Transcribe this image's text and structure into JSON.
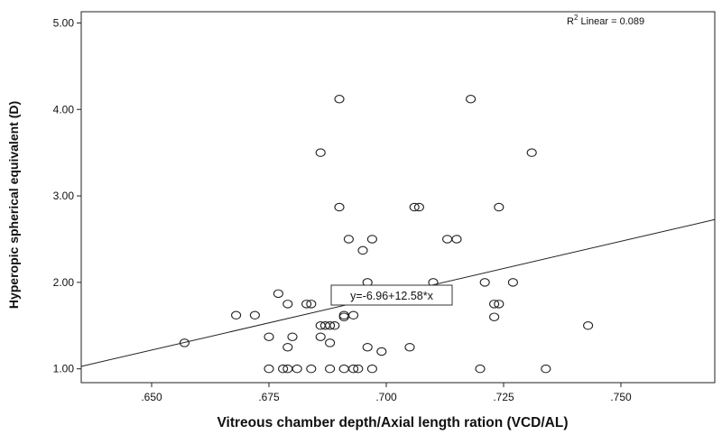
{
  "chart_data": {
    "type": "scatter",
    "xlabel": "Vitreous chamber depth/Axial length ration (VCD/AL)",
    "ylabel": "Hyperopic spherical equivalent (D)",
    "xlim": [
      0.635,
      0.77
    ],
    "ylim": [
      0.84,
      5.13
    ],
    "x_ticks": [
      0.65,
      0.675,
      0.7,
      0.725,
      0.75
    ],
    "x_tick_labels": [
      ".650",
      ".675",
      ".700",
      ".725",
      ".750"
    ],
    "y_ticks": [
      1.0,
      2.0,
      3.0,
      4.0,
      5.0
    ],
    "y_tick_labels": [
      "1.00",
      "2.00",
      "3.00",
      "4.00",
      "5.00"
    ],
    "grid": false,
    "fit_line": {
      "intercept": -6.96,
      "slope": 12.58,
      "label": "y=-6.96+12.58*x"
    },
    "r2_label": {
      "prefix": "R",
      "superscript": "2",
      "suffix": " Linear = 0.089"
    },
    "points": [
      {
        "x": 0.657,
        "y": 1.3
      },
      {
        "x": 0.668,
        "y": 1.62
      },
      {
        "x": 0.672,
        "y": 1.62
      },
      {
        "x": 0.675,
        "y": 1.37
      },
      {
        "x": 0.675,
        "y": 1.0
      },
      {
        "x": 0.677,
        "y": 1.87
      },
      {
        "x": 0.678,
        "y": 1.0
      },
      {
        "x": 0.679,
        "y": 1.0
      },
      {
        "x": 0.679,
        "y": 1.25
      },
      {
        "x": 0.679,
        "y": 1.75
      },
      {
        "x": 0.68,
        "y": 1.37
      },
      {
        "x": 0.681,
        "y": 1.0
      },
      {
        "x": 0.683,
        "y": 1.75
      },
      {
        "x": 0.684,
        "y": 1.75
      },
      {
        "x": 0.684,
        "y": 1.0
      },
      {
        "x": 0.686,
        "y": 1.37
      },
      {
        "x": 0.686,
        "y": 1.5
      },
      {
        "x": 0.686,
        "y": 3.5
      },
      {
        "x": 0.687,
        "y": 1.5
      },
      {
        "x": 0.688,
        "y": 1.5
      },
      {
        "x": 0.689,
        "y": 1.5
      },
      {
        "x": 0.688,
        "y": 1.3
      },
      {
        "x": 0.688,
        "y": 1.0
      },
      {
        "x": 0.69,
        "y": 2.87
      },
      {
        "x": 0.69,
        "y": 4.12
      },
      {
        "x": 0.691,
        "y": 1.62
      },
      {
        "x": 0.691,
        "y": 1.6
      },
      {
        "x": 0.691,
        "y": 1.0
      },
      {
        "x": 0.692,
        "y": 2.5
      },
      {
        "x": 0.693,
        "y": 1.62
      },
      {
        "x": 0.693,
        "y": 1.0
      },
      {
        "x": 0.694,
        "y": 1.0
      },
      {
        "x": 0.695,
        "y": 2.37
      },
      {
        "x": 0.696,
        "y": 2.0
      },
      {
        "x": 0.696,
        "y": 1.25
      },
      {
        "x": 0.697,
        "y": 2.5
      },
      {
        "x": 0.697,
        "y": 1.0
      },
      {
        "x": 0.699,
        "y": 1.2
      },
      {
        "x": 0.705,
        "y": 1.25
      },
      {
        "x": 0.706,
        "y": 2.87
      },
      {
        "x": 0.707,
        "y": 2.87
      },
      {
        "x": 0.71,
        "y": 2.0
      },
      {
        "x": 0.713,
        "y": 2.5
      },
      {
        "x": 0.715,
        "y": 2.5
      },
      {
        "x": 0.718,
        "y": 4.12
      },
      {
        "x": 0.72,
        "y": 1.0
      },
      {
        "x": 0.721,
        "y": 2.0
      },
      {
        "x": 0.723,
        "y": 1.6
      },
      {
        "x": 0.723,
        "y": 1.75
      },
      {
        "x": 0.724,
        "y": 1.75
      },
      {
        "x": 0.724,
        "y": 2.87
      },
      {
        "x": 0.727,
        "y": 2.0
      },
      {
        "x": 0.731,
        "y": 3.5
      },
      {
        "x": 0.734,
        "y": 1.0
      },
      {
        "x": 0.743,
        "y": 1.5
      }
    ]
  }
}
